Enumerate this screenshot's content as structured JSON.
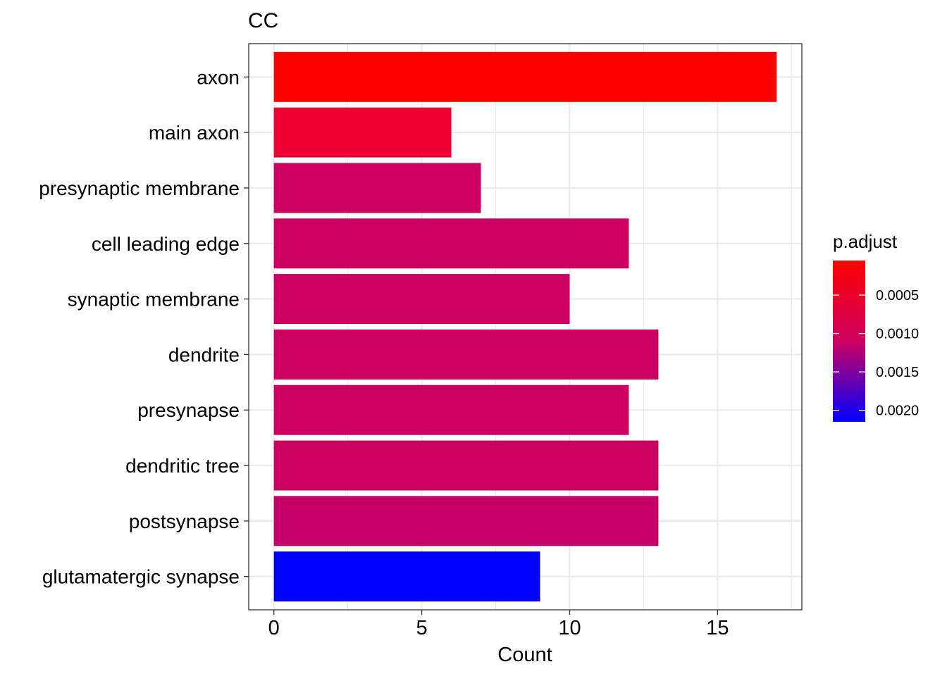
{
  "chart_data": {
    "type": "bar",
    "orientation": "horizontal",
    "title": "CC",
    "xlabel": "Count",
    "ylabel": "",
    "xlim": [
      -0.85,
      17.85
    ],
    "xticks": [
      0,
      5,
      10,
      15
    ],
    "grid": true,
    "categories": [
      "axon",
      "main axon",
      "presynaptic membrane",
      "cell leading edge",
      "synaptic membrane",
      "dendrite",
      "presynapse",
      "dendritic tree",
      "postsynapse",
      "glutamatergic synapse"
    ],
    "values": [
      17,
      6,
      7,
      12,
      10,
      13,
      12,
      13,
      13,
      9
    ],
    "p_adjust": [
      5e-05,
      0.0006,
      0.0011,
      0.0011,
      0.0011,
      0.0011,
      0.0011,
      0.0011,
      0.00115,
      0.00215
    ],
    "colors": [
      "#FF0000",
      "#EE0033",
      "#CC0060",
      "#CC0060",
      "#CC0060",
      "#CC0060",
      "#CC0060",
      "#CC0060",
      "#C40068",
      "#0000FF"
    ],
    "legend": {
      "title": "p.adjust",
      "placement": "right",
      "range": [
        5e-05,
        0.00215
      ],
      "ticks": [
        {
          "value": 0.0005,
          "label": "0.0005"
        },
        {
          "value": 0.001,
          "label": "0.0010"
        },
        {
          "value": 0.0015,
          "label": "0.0015"
        },
        {
          "value": 0.002,
          "label": "0.0020"
        }
      ],
      "color_low": "#FF0000",
      "color_high": "#0000FF"
    }
  }
}
